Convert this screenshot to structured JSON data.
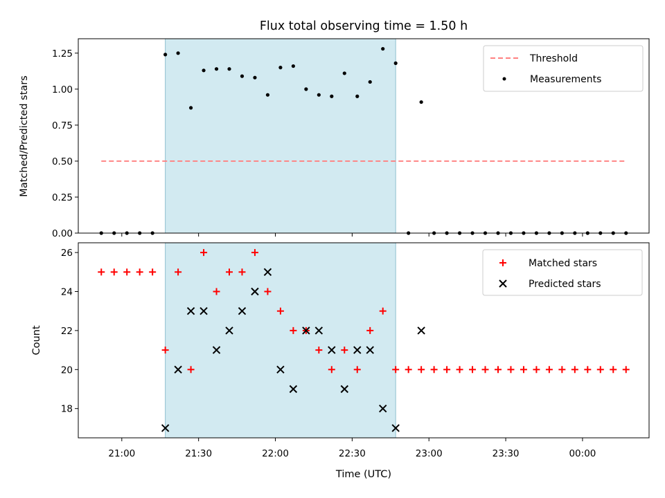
{
  "chart_data": [
    {
      "type": "scatter",
      "panel": "top",
      "title": "Flux total observing time = 1.50 h",
      "ylabel": "Matched/Predicted stars",
      "xlabel": "",
      "ylim": [
        0,
        1.35
      ],
      "yticks": [
        0,
        0.25,
        0.5,
        0.75,
        1.0,
        1.25
      ],
      "ytick_labels": [
        "0.00",
        "0.25",
        "0.50",
        "0.75",
        "1.00",
        "1.25"
      ],
      "legend_position": "top-right",
      "threshold": {
        "name": "Threshold",
        "value": 0.5,
        "x_start": "20:52",
        "x_end": "00:17",
        "color": "#ff8080",
        "style": "dashed"
      },
      "highlight": {
        "x_start": "21:17",
        "x_end": "22:47",
        "color": "#add8e6"
      },
      "series": [
        {
          "name": "Measurements",
          "color": "#000000",
          "marker": "dot",
          "x": [
            "20:52",
            "20:57",
            "21:02",
            "21:07",
            "21:12",
            "21:17",
            "21:22",
            "21:27",
            "21:32",
            "21:37",
            "21:42",
            "21:47",
            "21:52",
            "21:57",
            "22:02",
            "22:07",
            "22:12",
            "22:17",
            "22:22",
            "22:27",
            "22:32",
            "22:37",
            "22:42",
            "22:47",
            "22:52",
            "22:57",
            "23:02",
            "23:07",
            "23:12",
            "23:17",
            "23:22",
            "23:27",
            "23:32",
            "23:37",
            "23:42",
            "23:47",
            "23:52",
            "23:57",
            "00:02",
            "00:07",
            "00:12",
            "00:17"
          ],
          "y": [
            0,
            0,
            0,
            0,
            0,
            1.24,
            1.25,
            0.87,
            1.13,
            1.14,
            1.14,
            1.09,
            1.08,
            0.96,
            1.15,
            1.16,
            1.0,
            0.96,
            0.95,
            1.11,
            0.95,
            1.05,
            1.28,
            1.18,
            0,
            0.91,
            0,
            0,
            0,
            0,
            0,
            0,
            0,
            0,
            0,
            0,
            0,
            0,
            0,
            0,
            0,
            0
          ]
        }
      ]
    },
    {
      "type": "scatter",
      "panel": "bottom",
      "xlabel": "Time (UTC)",
      "ylabel": "Count",
      "ylim": [
        16.5,
        26.5
      ],
      "yticks": [
        18,
        20,
        22,
        24,
        26
      ],
      "ytick_labels": [
        "18",
        "20",
        "22",
        "24",
        "26"
      ],
      "xticks": [
        "21:00",
        "21:30",
        "22:00",
        "22:30",
        "23:00",
        "23:30",
        "00:00"
      ],
      "legend_position": "top-right",
      "highlight": {
        "x_start": "21:17",
        "x_end": "22:47",
        "color": "#add8e6"
      },
      "series": [
        {
          "name": "Matched stars",
          "color": "#ff0000",
          "marker": "plus",
          "x": [
            "20:52",
            "20:57",
            "21:02",
            "21:07",
            "21:12",
            "21:17",
            "21:22",
            "21:27",
            "21:32",
            "21:37",
            "21:42",
            "21:47",
            "21:52",
            "21:57",
            "22:02",
            "22:07",
            "22:12",
            "22:17",
            "22:22",
            "22:27",
            "22:32",
            "22:37",
            "22:42",
            "22:47",
            "22:52",
            "22:57",
            "23:02",
            "23:07",
            "23:12",
            "23:17",
            "23:22",
            "23:27",
            "23:32",
            "23:37",
            "23:42",
            "23:47",
            "23:52",
            "23:57",
            "00:02",
            "00:07",
            "00:12",
            "00:17"
          ],
          "y": [
            25,
            25,
            25,
            25,
            25,
            21,
            25,
            20,
            26,
            24,
            25,
            25,
            26,
            24,
            23,
            22,
            22,
            21,
            20,
            21,
            20,
            22,
            23,
            20,
            20,
            20,
            20,
            20,
            20,
            20,
            20,
            20,
            20,
            20,
            20,
            20,
            20,
            20,
            20,
            20,
            20,
            20
          ]
        },
        {
          "name": "Predicted stars",
          "color": "#000000",
          "marker": "x",
          "x": [
            "21:17",
            "21:22",
            "21:27",
            "21:32",
            "21:37",
            "21:42",
            "21:47",
            "21:52",
            "21:57",
            "22:02",
            "22:07",
            "22:12",
            "22:17",
            "22:22",
            "22:27",
            "22:32",
            "22:37",
            "22:42",
            "22:47",
            "22:57"
          ],
          "y": [
            17,
            20,
            23,
            23,
            21,
            22,
            23,
            24,
            25,
            20,
            19,
            22,
            22,
            21,
            19,
            21,
            21,
            18,
            17,
            22
          ]
        }
      ]
    }
  ]
}
